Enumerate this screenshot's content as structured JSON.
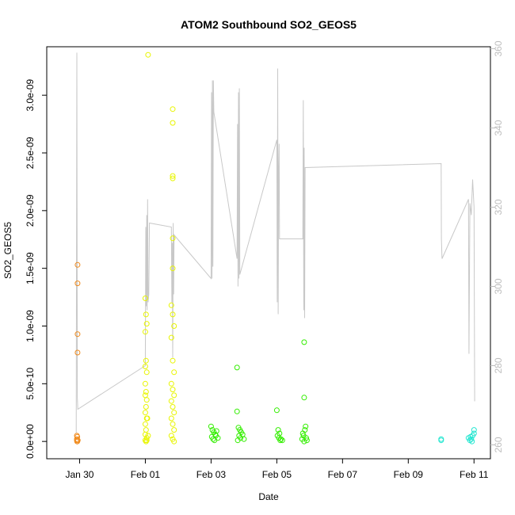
{
  "chart_data": {
    "type": "scatter",
    "title": "ATOM2 Southbound SO2_GEOS5",
    "xlabel": "Date",
    "ylabel": "SO2_GEOS5",
    "y_ticks": [
      "0.0e+00",
      "5.0e-10",
      "1.0e-09",
      "1.5e-09",
      "2.0e-09",
      "2.5e-09",
      "3.0e-09"
    ],
    "y2_ticks": [
      "260",
      "280",
      "300",
      "320",
      "340",
      "360"
    ],
    "x_ticks": [
      "Jan 30",
      "Feb 01",
      "Feb 03",
      "Feb 05",
      "Feb 07",
      "Feb 09",
      "Feb 11"
    ],
    "xlim": [
      "2017-01-29 00:00",
      "2017-02-11 12:00"
    ],
    "ylim": [
      -1.5e-10,
      3.42e-09
    ],
    "y2lim": [
      256.5,
      360.5
    ],
    "grid": false,
    "colors": {
      "axis": "#000000",
      "secondary_axis": "#bdbdbd",
      "secondary_line": "#c8c8c8",
      "orange": "#f08a1c",
      "yellow": "#e8f500",
      "light_green": "#9cf000",
      "green": "#33ee00",
      "cyan": "#22e6d0"
    },
    "series": [
      {
        "color": "#f08a1c",
        "points": [
          [
            "2017-01-29 22:30",
            1.53e-09
          ],
          [
            "2017-01-29 22:30",
            1.37e-09
          ],
          [
            "2017-01-29 22:30",
            9.3e-10
          ],
          [
            "2017-01-29 22:30",
            7.7e-10
          ],
          [
            "2017-01-29 22:00",
            5e-11
          ],
          [
            "2017-01-29 22:00",
            2e-11
          ],
          [
            "2017-01-29 22:00",
            1e-11
          ],
          [
            "2017-01-29 22:10",
            0
          ],
          [
            "2017-01-29 22:20",
            4e-11
          ],
          [
            "2017-01-29 22:20",
            0
          ],
          [
            "2017-01-29 22:40",
            1e-11
          ]
        ]
      },
      {
        "color": "#e8f500",
        "points": [
          [
            "2017-02-01 02:00",
            3.35e-09
          ],
          [
            "2017-02-01 00:00",
            1.24e-09
          ],
          [
            "2017-02-01 00:30",
            1.1e-09
          ],
          [
            "2017-02-01 01:00",
            1.02e-09
          ],
          [
            "2017-02-01 00:00",
            9.5e-10
          ],
          [
            "2017-02-01 00:30",
            7e-10
          ],
          [
            "2017-02-01 00:00",
            6.5e-10
          ],
          [
            "2017-02-01 01:00",
            6e-10
          ],
          [
            "2017-02-01 00:00",
            5e-10
          ],
          [
            "2017-02-01 00:30",
            4.3e-10
          ],
          [
            "2017-02-01 00:00",
            4e-10
          ],
          [
            "2017-02-01 01:00",
            3.6e-10
          ],
          [
            "2017-02-01 00:30",
            3e-10
          ],
          [
            "2017-02-01 00:00",
            2.5e-10
          ],
          [
            "2017-02-01 01:00",
            2e-10
          ],
          [
            "2017-02-01 00:00",
            1.5e-10
          ],
          [
            "2017-02-01 00:30",
            1e-10
          ],
          [
            "2017-02-01 00:00",
            6e-11
          ],
          [
            "2017-02-01 01:00",
            3e-11
          ],
          [
            "2017-02-01 00:00",
            1e-11
          ],
          [
            "2017-02-01 00:30",
            0
          ],
          [
            "2017-02-01 01:00",
            1e-11
          ],
          [
            "2017-02-01 02:00",
            5e-11
          ],
          [
            "2017-02-01 01:30",
            2e-10
          ],
          [
            "2017-02-01 20:00",
            2.88e-09
          ],
          [
            "2017-02-01 20:00",
            2.76e-09
          ],
          [
            "2017-02-01 20:00",
            2.3e-09
          ],
          [
            "2017-02-01 20:00",
            2.28e-09
          ],
          [
            "2017-02-01 20:00",
            1.76e-09
          ],
          [
            "2017-02-01 20:00",
            1.5e-09
          ],
          [
            "2017-02-01 19:00",
            1.18e-09
          ],
          [
            "2017-02-01 20:00",
            1.1e-09
          ],
          [
            "2017-02-01 21:00",
            1e-09
          ],
          [
            "2017-02-01 19:00",
            9e-10
          ],
          [
            "2017-02-01 20:00",
            7e-10
          ],
          [
            "2017-02-01 21:00",
            6e-10
          ],
          [
            "2017-02-01 19:00",
            5e-10
          ],
          [
            "2017-02-01 20:00",
            4.5e-10
          ],
          [
            "2017-02-01 21:00",
            4e-10
          ],
          [
            "2017-02-01 19:00",
            3.5e-10
          ],
          [
            "2017-02-01 20:00",
            3e-10
          ],
          [
            "2017-02-01 21:00",
            2.5e-10
          ],
          [
            "2017-02-01 19:00",
            2e-10
          ],
          [
            "2017-02-01 20:00",
            1.5e-10
          ],
          [
            "2017-02-01 21:00",
            1e-10
          ],
          [
            "2017-02-01 19:00",
            5e-11
          ],
          [
            "2017-02-01 20:00",
            2e-11
          ],
          [
            "2017-02-01 21:00",
            0
          ]
        ]
      },
      {
        "color": "#33ee00",
        "points": [
          [
            "2017-02-03 00:00",
            1.3e-10
          ],
          [
            "2017-02-03 01:00",
            1e-10
          ],
          [
            "2017-02-03 02:00",
            8e-11
          ],
          [
            "2017-02-03 03:00",
            6e-11
          ],
          [
            "2017-02-03 00:30",
            4e-11
          ],
          [
            "2017-02-03 01:30",
            2e-11
          ],
          [
            "2017-02-03 02:30",
            1e-11
          ],
          [
            "2017-02-03 03:30",
            5e-11
          ],
          [
            "2017-02-03 04:00",
            9e-11
          ],
          [
            "2017-02-03 05:00",
            3e-11
          ],
          [
            "2017-02-03 19:00",
            6.4e-10
          ],
          [
            "2017-02-03 19:00",
            2.6e-10
          ],
          [
            "2017-02-03 20:00",
            1.2e-10
          ],
          [
            "2017-02-03 21:00",
            1e-10
          ],
          [
            "2017-02-03 22:00",
            8e-11
          ],
          [
            "2017-02-03 20:30",
            5e-11
          ],
          [
            "2017-02-03 21:30",
            3e-11
          ],
          [
            "2017-02-03 19:30",
            1e-11
          ],
          [
            "2017-02-03 23:00",
            6e-11
          ],
          [
            "2017-02-04 00:00",
            2e-11
          ],
          [
            "2017-02-05 00:00",
            2.7e-10
          ],
          [
            "2017-02-05 01:00",
            1e-10
          ],
          [
            "2017-02-05 02:00",
            7e-11
          ],
          [
            "2017-02-05 00:30",
            5e-11
          ],
          [
            "2017-02-05 01:30",
            3e-11
          ],
          [
            "2017-02-05 02:30",
            1e-11
          ],
          [
            "2017-02-05 03:00",
            2e-11
          ],
          [
            "2017-02-05 04:00",
            1e-11
          ],
          [
            "2017-02-05 20:00",
            8.6e-10
          ],
          [
            "2017-02-05 20:00",
            3.8e-10
          ],
          [
            "2017-02-05 21:00",
            1.3e-10
          ],
          [
            "2017-02-05 20:30",
            1e-10
          ],
          [
            "2017-02-05 19:00",
            7e-11
          ],
          [
            "2017-02-05 19:30",
            5e-11
          ],
          [
            "2017-02-05 21:30",
            3e-11
          ],
          [
            "2017-02-05 22:00",
            1e-11
          ],
          [
            "2017-02-05 18:30",
            2e-11
          ],
          [
            "2017-02-05 20:00",
            0
          ]
        ]
      },
      {
        "color": "#22e6d0",
        "points": [
          [
            "2017-02-10 00:00",
            2e-11
          ],
          [
            "2017-02-10 00:00",
            1e-11
          ],
          [
            "2017-02-10 20:00",
            3e-11
          ],
          [
            "2017-02-10 21:00",
            1e-11
          ],
          [
            "2017-02-10 22:00",
            2e-11
          ],
          [
            "2017-02-10 23:00",
            5e-11
          ],
          [
            "2017-02-11 00:00",
            1e-10
          ],
          [
            "2017-02-11 00:00",
            7e-11
          ],
          [
            "2017-02-10 22:30",
            0
          ],
          [
            "2017-02-10 21:30",
            4e-11
          ]
        ]
      }
    ],
    "secondary_line": [
      [
        "2017-01-29 21:30",
        263
      ],
      [
        "2017-01-29 22:00",
        359
      ],
      [
        "2017-01-29 22:20",
        272
      ],
      [
        "2017-01-29 22:40",
        269
      ],
      [
        "2017-02-01 00:00",
        280
      ],
      [
        "2017-02-01 00:20",
        315
      ],
      [
        "2017-02-01 00:40",
        295
      ],
      [
        "2017-02-01 01:00",
        318
      ],
      [
        "2017-02-01 01:20",
        294
      ],
      [
        "2017-02-01 01:40",
        322
      ],
      [
        "2017-02-01 02:00",
        296
      ],
      [
        "2017-02-01 02:30",
        298
      ],
      [
        "2017-02-01 03:00",
        316
      ],
      [
        "2017-02-01 19:00",
        315
      ],
      [
        "2017-02-01 19:20",
        296
      ],
      [
        "2017-02-01 19:40",
        311
      ],
      [
        "2017-02-01 20:00",
        282
      ],
      [
        "2017-02-01 20:20",
        316
      ],
      [
        "2017-02-01 20:40",
        298
      ],
      [
        "2017-02-01 21:00",
        313
      ],
      [
        "2017-02-03 00:00",
        302
      ],
      [
        "2017-02-03 00:20",
        349
      ],
      [
        "2017-02-03 00:40",
        302
      ],
      [
        "2017-02-03 01:00",
        352
      ],
      [
        "2017-02-03 01:20",
        305
      ],
      [
        "2017-02-03 01:40",
        352
      ],
      [
        "2017-02-03 02:00",
        344
      ],
      [
        "2017-02-03 19:00",
        307
      ],
      [
        "2017-02-03 19:20",
        341
      ],
      [
        "2017-02-03 19:40",
        300
      ],
      [
        "2017-02-03 20:00",
        349
      ],
      [
        "2017-02-03 20:20",
        302
      ],
      [
        "2017-02-03 20:40",
        350
      ],
      [
        "2017-02-03 21:00",
        303
      ],
      [
        "2017-02-05 00:00",
        337
      ],
      [
        "2017-02-05 00:20",
        296
      ],
      [
        "2017-02-05 00:40",
        355
      ],
      [
        "2017-02-05 01:00",
        293
      ],
      [
        "2017-02-05 01:20",
        330
      ],
      [
        "2017-02-05 01:40",
        336
      ],
      [
        "2017-02-05 02:00",
        312
      ],
      [
        "2017-02-05 19:00",
        312
      ],
      [
        "2017-02-05 19:20",
        347
      ],
      [
        "2017-02-05 19:40",
        294
      ],
      [
        "2017-02-05 20:00",
        335
      ],
      [
        "2017-02-05 20:20",
        292
      ],
      [
        "2017-02-05 20:40",
        330
      ],
      [
        "2017-02-10 00:00",
        331
      ],
      [
        "2017-02-10 00:10",
        312
      ],
      [
        "2017-02-10 00:40",
        307
      ],
      [
        "2017-02-10 20:00",
        322
      ],
      [
        "2017-02-10 20:20",
        283
      ],
      [
        "2017-02-10 21:00",
        321
      ],
      [
        "2017-02-10 22:00",
        318
      ],
      [
        "2017-02-10 23:00",
        327
      ],
      [
        "2017-02-11 00:00",
        320
      ],
      [
        "2017-02-11 00:30",
        271
      ]
    ]
  }
}
